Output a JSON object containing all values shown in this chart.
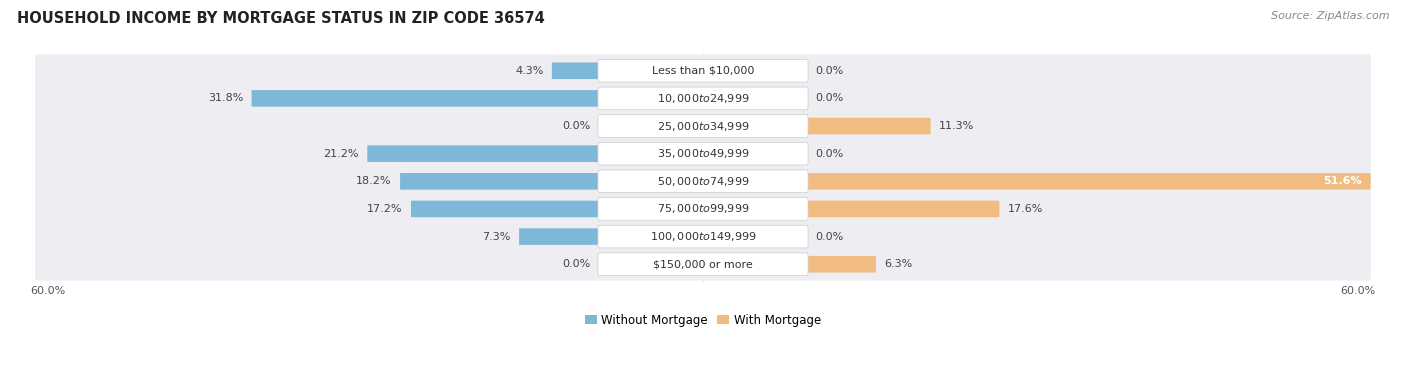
{
  "title": "HOUSEHOLD INCOME BY MORTGAGE STATUS IN ZIP CODE 36574",
  "source": "Source: ZipAtlas.com",
  "categories": [
    "Less than $10,000",
    "$10,000 to $24,999",
    "$25,000 to $34,999",
    "$35,000 to $49,999",
    "$50,000 to $74,999",
    "$75,000 to $99,999",
    "$100,000 to $149,999",
    "$150,000 or more"
  ],
  "without_mortgage": [
    4.3,
    31.8,
    0.0,
    21.2,
    18.2,
    17.2,
    7.3,
    0.0
  ],
  "with_mortgage": [
    0.0,
    0.0,
    11.3,
    0.0,
    51.6,
    17.6,
    0.0,
    6.3
  ],
  "color_without": "#7eb8d9",
  "color_with": "#f0bc82",
  "axis_limit": 60.0,
  "bg_color": "#ffffff",
  "row_bg_color": "#ededf2",
  "label_bg_color": "#ffffff",
  "title_fontsize": 10.5,
  "source_fontsize": 8,
  "value_fontsize": 8,
  "category_fontsize": 8,
  "legend_fontsize": 8.5,
  "axis_label_fontsize": 8
}
